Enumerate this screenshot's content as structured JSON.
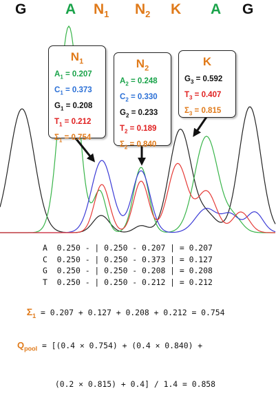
{
  "colors": {
    "A": "#1aa34a",
    "C": "#2a6fd6",
    "G": "#111111",
    "T": "#e02020",
    "sigma": "#e07a1a",
    "N": "#e07a1a",
    "trace_A": "#38b449",
    "trace_C": "#3b3bd6",
    "trace_G": "#222222",
    "trace_T": "#e53935"
  },
  "header": [
    {
      "base": "G",
      "sub": "",
      "color": "#111111"
    },
    {
      "base": "A",
      "sub": "",
      "color": "#1aa34a"
    },
    {
      "base": "N",
      "sub": "1",
      "color": "#e07a1a"
    },
    {
      "base": "N",
      "sub": "2",
      "color": "#e07a1a"
    },
    {
      "base": "K",
      "sub": "",
      "color": "#e07a1a"
    },
    {
      "base": "A",
      "sub": "",
      "color": "#1aa34a"
    },
    {
      "base": "G",
      "sub": "",
      "color": "#111111"
    }
  ],
  "boxes": {
    "n1": {
      "title": "N",
      "title_sub": "1",
      "rows": [
        {
          "label": "A",
          "sub": "1",
          "value": "0.207",
          "color": "#1aa34a"
        },
        {
          "label": "C",
          "sub": "1",
          "value": "0.373",
          "color": "#2a6fd6"
        },
        {
          "label": "G",
          "sub": "1",
          "value": "0.208",
          "color": "#111111"
        },
        {
          "label": "T",
          "sub": "1",
          "value": "0.212",
          "color": "#e02020"
        },
        {
          "label": "Σ",
          "sub": "1",
          "value": "0.754",
          "color": "#e07a1a"
        }
      ]
    },
    "n2": {
      "title": "N",
      "title_sub": "2",
      "rows": [
        {
          "label": "A",
          "sub": "2",
          "value": "0.248",
          "color": "#1aa34a"
        },
        {
          "label": "C",
          "sub": "2",
          "value": "0.330",
          "color": "#2a6fd6"
        },
        {
          "label": "G",
          "sub": "2",
          "value": "0.233",
          "color": "#111111"
        },
        {
          "label": "T",
          "sub": "2",
          "value": "0.189",
          "color": "#e02020"
        },
        {
          "label": "Σ",
          "sub": "2",
          "value": "0.840",
          "color": "#e07a1a"
        }
      ]
    },
    "k": {
      "title": "K",
      "title_sub": "",
      "rows": [
        {
          "label": "G",
          "sub": "3",
          "value": "0.592",
          "color": "#111111"
        },
        {
          "label": "T",
          "sub": "3",
          "value": "0.407",
          "color": "#e02020"
        },
        {
          "label": "Σ",
          "sub": "3",
          "value": "0.815",
          "color": "#e07a1a"
        }
      ]
    }
  },
  "calc_lines": [
    "A  0.250 - | 0.250 - 0.207 | = 0.207",
    "C  0.250 - | 0.250 - 0.373 | = 0.127",
    "G  0.250 - | 0.250 - 0.208 | = 0.208",
    "T  0.250 - | 0.250 - 0.212 | = 0.212"
  ],
  "sigma": {
    "label": "Σ",
    "label_sub": "1",
    "expr": " = 0.207 + 0.127 + 0.208 + 0.212 = 0.754"
  },
  "qpool": {
    "label": "Q",
    "label_sub": "pool",
    "line1": " = [(0.4 × 0.754) + (0.4 × 0.840) +",
    "line2": "        (0.2 × 0.815) + 0.4] / 1.4 = 0.858"
  }
}
